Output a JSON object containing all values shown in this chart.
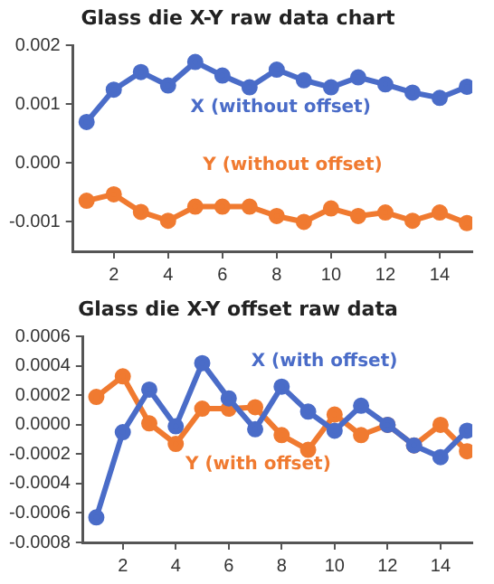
{
  "chart_data": [
    {
      "type": "line",
      "title": "Glass die X-Y raw data chart",
      "x": [
        1,
        2,
        3,
        4,
        5,
        6,
        7,
        8,
        9,
        10,
        11,
        12,
        13,
        14,
        15
      ],
      "series": [
        {
          "name": "X (without offset)",
          "color": "#4a6cc8",
          "values": [
            0.0007,
            0.00125,
            0.00155,
            0.00132,
            0.00172,
            0.00149,
            0.00129,
            0.00159,
            0.00141,
            0.00129,
            0.00146,
            0.00134,
            0.0012,
            0.00111,
            0.0013
          ]
        },
        {
          "name": "Y (without offset)",
          "color": "#f07a30",
          "values": [
            -0.00064,
            -0.00053,
            -0.00083,
            -0.00098,
            -0.00074,
            -0.00074,
            -0.00074,
            -0.0009,
            -0.001,
            -0.00077,
            -0.0009,
            -0.00084,
            -0.00098,
            -0.00084,
            -0.00102
          ]
        }
      ],
      "xlim": [
        0.5,
        15.2
      ],
      "xticks": [
        2,
        4,
        6,
        8,
        10,
        12,
        14
      ],
      "ylim": [
        -0.0015,
        0.002
      ],
      "yticks": [
        {
          "value": 0.002,
          "label": "0.002"
        },
        {
          "value": 0.001,
          "label": "0.001"
        },
        {
          "value": 0,
          "label": "0.000"
        },
        {
          "value": -0.001,
          "label": "-0.001"
        }
      ],
      "grid": false,
      "legend": false,
      "marker": "circle",
      "line_style": "solid"
    },
    {
      "type": "line",
      "title": "Glass die X-Y offset raw data",
      "x": [
        1,
        2,
        3,
        4,
        5,
        6,
        7,
        8,
        9,
        10,
        11,
        12,
        13,
        14,
        15
      ],
      "series": [
        {
          "name": "X (with offset)",
          "color": "#4a6cc8",
          "values": [
            -0.00063,
            -5e-05,
            0.00024,
            -1e-05,
            0.00042,
            0.00018,
            -3e-05,
            0.00026,
            9e-05,
            -4e-05,
            0.00013,
            0,
            -0.00014,
            -0.00022,
            -4e-05
          ]
        },
        {
          "name": "Y (with offset)",
          "color": "#f07a30",
          "values": [
            0.00019,
            0.00033,
            1e-05,
            -0.00013,
            0.00011,
            0.00011,
            0.00012,
            -7e-05,
            -0.00017,
            7e-05,
            -7e-05,
            0,
            -0.00014,
            0,
            -0.00018
          ]
        }
      ],
      "xlim": [
        0.5,
        15.2
      ],
      "xticks": [
        2,
        4,
        6,
        8,
        10,
        12,
        14
      ],
      "ylim": [
        -0.0008,
        0.0006
      ],
      "yticks": [
        {
          "value": 0.0006,
          "label": "0.0006"
        },
        {
          "value": 0.0004,
          "label": "0.0004"
        },
        {
          "value": 0.0002,
          "label": "0.0002"
        },
        {
          "value": 0,
          "label": "0.0000"
        },
        {
          "value": -0.0002,
          "label": "-0.0002"
        },
        {
          "value": -0.0004,
          "label": "-0.0004"
        },
        {
          "value": -0.0006,
          "label": "-0.0006"
        },
        {
          "value": -0.0008,
          "label": "-0.0008"
        }
      ],
      "grid": false,
      "legend": false,
      "marker": "circle",
      "line_style": "solid"
    }
  ]
}
